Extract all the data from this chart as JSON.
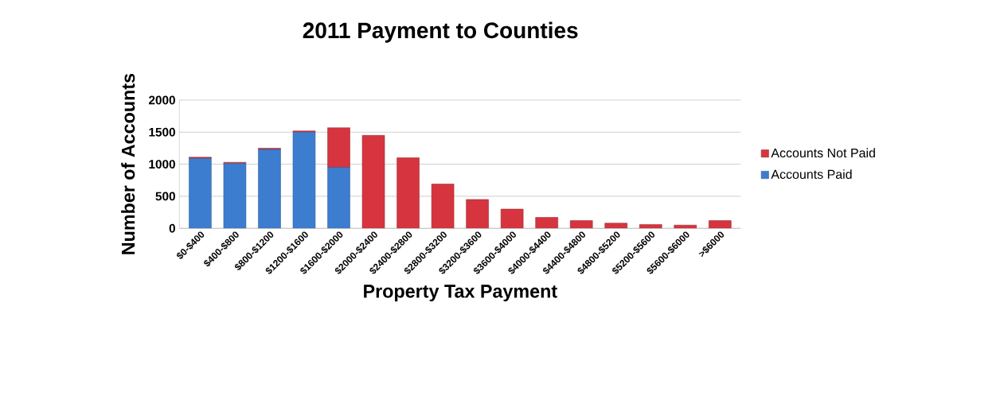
{
  "chart_data": {
    "type": "bar",
    "title": "2011 Payment to Counties",
    "xlabel": "Property Tax Payment",
    "ylabel": "Number of Accounts",
    "categories": [
      "$0-$400",
      "$400-$800",
      "$800-$1200",
      "$1200-$1600",
      "$1600-$2000",
      "$2000-$2400",
      "$2400-$2800",
      "$2800-$3200",
      "$3200-$3600",
      "$3600-$4000",
      "$4000-$4400",
      "$4400-$4800",
      "$4800-$5200",
      "$5200-$5600",
      "$5600-$6000",
      ">$6000"
    ],
    "stacked": true,
    "series": [
      {
        "name": "Accounts Paid",
        "color": "#3d7dd0",
        "values": [
          1090,
          1010,
          1230,
          1500,
          950,
          0,
          0,
          0,
          0,
          0,
          0,
          0,
          0,
          0,
          0,
          0
        ]
      },
      {
        "name": "Accounts Not Paid",
        "color": "#d6353f",
        "values": [
          20,
          20,
          20,
          20,
          620,
          1450,
          1100,
          690,
          450,
          300,
          170,
          120,
          80,
          60,
          50,
          120
        ]
      }
    ],
    "ylim": [
      0,
      2000
    ],
    "yticks": [
      0,
      500,
      1000,
      1500,
      2000
    ],
    "grid": "y",
    "legend": "right"
  }
}
